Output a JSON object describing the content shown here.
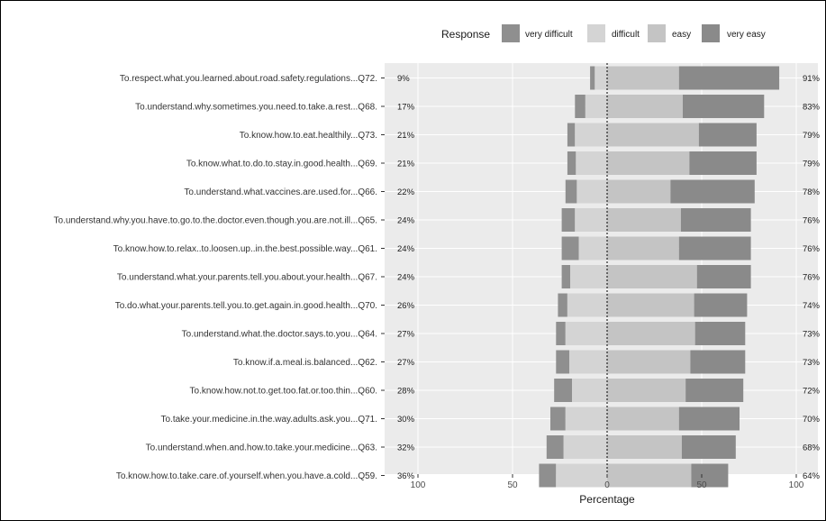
{
  "chart_data": {
    "type": "bar",
    "subtype": "diverging-stacked-likert",
    "xlabel": "Percentage",
    "xlim": [
      -100,
      100
    ],
    "x_ticks": [
      {
        "value": -100,
        "label": "100"
      },
      {
        "value": -50,
        "label": "50"
      },
      {
        "value": 0,
        "label": "0"
      },
      {
        "value": 50,
        "label": "50"
      },
      {
        "value": 100,
        "label": "100"
      }
    ],
    "legend": {
      "title": "Response",
      "placement": "top",
      "items": [
        {
          "key": "very_difficult",
          "label": "very difficult",
          "color": "#8f8f8f"
        },
        {
          "key": "difficult",
          "label": "difficult",
          "color": "#d4d4d4"
        },
        {
          "key": "easy",
          "label": "easy",
          "color": "#c4c4c4"
        },
        {
          "key": "very_easy",
          "label": "very easy",
          "color": "#8a8a8a"
        }
      ]
    },
    "grid": true,
    "rows": [
      {
        "label": "To.respect.what.you.learned.about.road.safety.regulations...Q72.",
        "left_pct": "9%",
        "right_pct": "91%",
        "very_difficult": 2.5,
        "difficult": 6.5,
        "easy": 38,
        "very_easy": 53
      },
      {
        "label": "To.understand.why.sometimes.you.need.to.take.a.rest...Q68.",
        "left_pct": "17%",
        "right_pct": "83%",
        "very_difficult": 5.5,
        "difficult": 11.5,
        "easy": 40,
        "very_easy": 43
      },
      {
        "label": "To.know.how.to.eat.healthily...Q73.",
        "left_pct": "21%",
        "right_pct": "79%",
        "very_difficult": 4,
        "difficult": 17,
        "easy": 48.5,
        "very_easy": 30.5
      },
      {
        "label": "To.know.what.to.do.to.stay.in.good.health...Q69.",
        "left_pct": "21%",
        "right_pct": "79%",
        "very_difficult": 4.5,
        "difficult": 16.5,
        "easy": 43.5,
        "very_easy": 35.5
      },
      {
        "label": "To.understand.what.vaccines.are.used.for...Q66.",
        "left_pct": "22%",
        "right_pct": "78%",
        "very_difficult": 6,
        "difficult": 16,
        "easy": 33.5,
        "very_easy": 44.5
      },
      {
        "label": "To.understand.why.you.have.to.go.to.the.doctor.even.though.you.are.not.ill...Q65.",
        "left_pct": "24%",
        "right_pct": "76%",
        "very_difficult": 7,
        "difficult": 17,
        "easy": 39,
        "very_easy": 37
      },
      {
        "label": "To.know.how.to.relax..to.loosen.up..in.the.best.possible.way...Q61.",
        "left_pct": "24%",
        "right_pct": "76%",
        "very_difficult": 9,
        "difficult": 15,
        "easy": 38,
        "very_easy": 38
      },
      {
        "label": "To.understand.what.your.parents.tell.you.about.your.health...Q67.",
        "left_pct": "24%",
        "right_pct": "76%",
        "very_difficult": 4.5,
        "difficult": 19.5,
        "easy": 47.5,
        "very_easy": 28.5
      },
      {
        "label": "To.do.what.your.parents.tell.you.to.get.again.in.good.health...Q70.",
        "left_pct": "26%",
        "right_pct": "74%",
        "very_difficult": 5,
        "difficult": 21,
        "easy": 46,
        "very_easy": 28
      },
      {
        "label": "To.understand.what.the.doctor.says.to.you...Q64.",
        "left_pct": "27%",
        "right_pct": "73%",
        "very_difficult": 5,
        "difficult": 22,
        "easy": 46.5,
        "very_easy": 26.5
      },
      {
        "label": "To.know.if.a.meal.is.balanced...Q62.",
        "left_pct": "27%",
        "right_pct": "73%",
        "very_difficult": 7,
        "difficult": 20,
        "easy": 44,
        "very_easy": 29
      },
      {
        "label": "To.know.how.not.to.get.too.fat.or.too.thin...Q60.",
        "left_pct": "28%",
        "right_pct": "72%",
        "very_difficult": 9.5,
        "difficult": 18.5,
        "easy": 41.5,
        "very_easy": 30.5
      },
      {
        "label": "To.take.your.medicine.in.the.way.adults.ask.you...Q71.",
        "left_pct": "30%",
        "right_pct": "70%",
        "very_difficult": 8,
        "difficult": 22,
        "easy": 38,
        "very_easy": 32
      },
      {
        "label": "To.understand.when.and.how.to.take.your.medicine...Q63.",
        "left_pct": "32%",
        "right_pct": "68%",
        "very_difficult": 9,
        "difficult": 23,
        "easy": 39.5,
        "very_easy": 28.5
      },
      {
        "label": "To.know.how.to.take.care.of.yourself.when.you.have.a.cold...Q59.",
        "left_pct": "36%",
        "right_pct": "64%",
        "very_difficult": 9,
        "difficult": 27,
        "easy": 44.5,
        "very_easy": 19.5
      }
    ]
  }
}
